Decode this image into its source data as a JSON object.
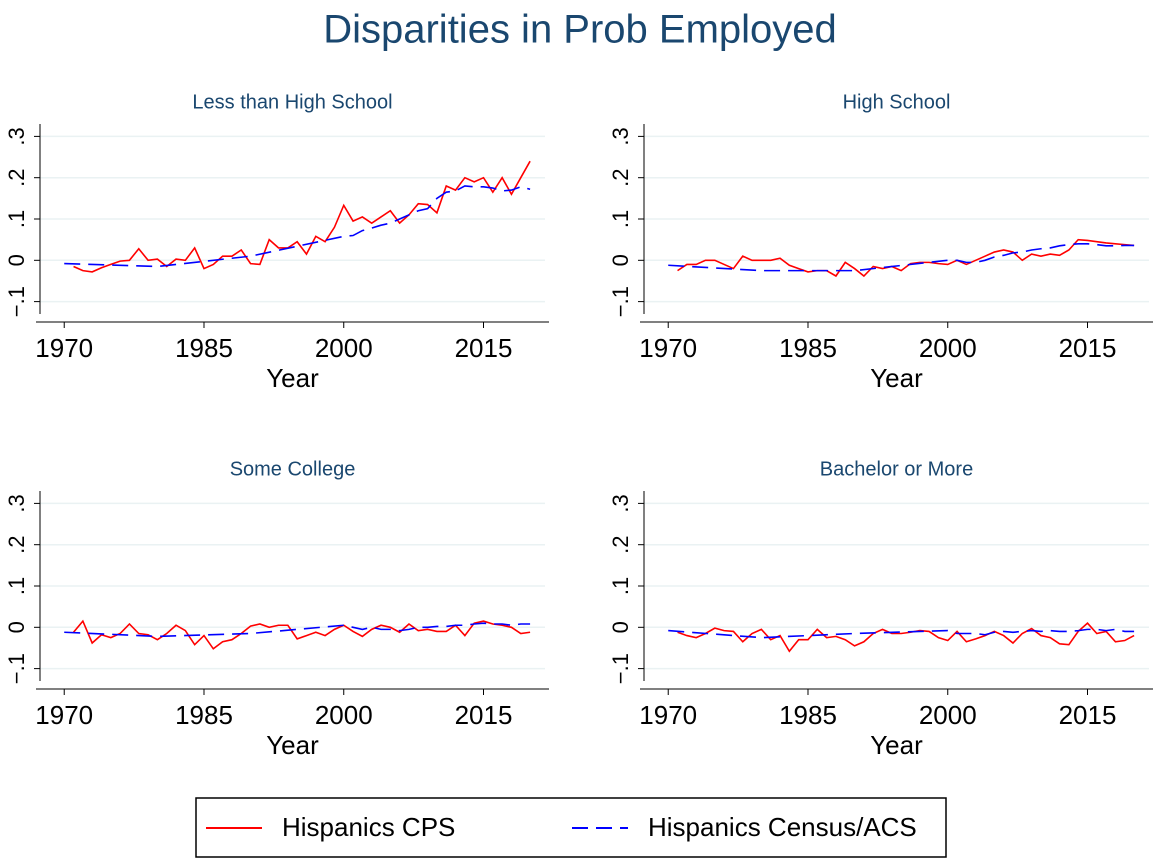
{
  "title": "Disparities in Prob Employed",
  "chart_data": [
    {
      "type": "line",
      "title": "Less than High School",
      "xlabel": "Year",
      "xlim": [
        1967.4,
        2021.6
      ],
      "ylim": [
        -0.13,
        0.33
      ],
      "xticks": [
        1970,
        1985,
        2000,
        2015
      ],
      "yticks": [
        {
          "value": -0.1,
          "label": "−.1"
        },
        0,
        {
          "value": 0.1,
          "label": ".1"
        },
        {
          "value": 0.2,
          "label": ".2"
        },
        {
          "value": 0.3,
          "label": ".3"
        }
      ],
      "grid": true,
      "series": [
        {
          "name": "Hispanics CPS",
          "color": "#ff0000",
          "dash": "solid",
          "x": [
            1971,
            1972,
            1973,
            1974,
            1975,
            1976,
            1977,
            1978,
            1979,
            1980,
            1981,
            1982,
            1983,
            1984,
            1985,
            1986,
            1987,
            1988,
            1989,
            1990,
            1991,
            1992,
            1993,
            1994,
            1995,
            1996,
            1997,
            1998,
            1999,
            2000,
            2001,
            2002,
            2003,
            2004,
            2005,
            2006,
            2007,
            2008,
            2009,
            2010,
            2011,
            2012,
            2013,
            2014,
            2015,
            2016,
            2017,
            2018,
            2019,
            2020
          ],
          "values": [
            -0.015,
            -0.025,
            -0.028,
            -0.018,
            -0.01,
            -0.002,
            0.0,
            0.028,
            0.0,
            0.003,
            -0.015,
            0.003,
            0.0,
            0.03,
            -0.02,
            -0.01,
            0.01,
            0.01,
            0.025,
            -0.008,
            -0.01,
            0.05,
            0.03,
            0.03,
            0.045,
            0.015,
            0.058,
            0.045,
            0.08,
            0.133,
            0.095,
            0.105,
            0.09,
            0.105,
            0.12,
            0.09,
            0.11,
            0.137,
            0.135,
            0.115,
            0.18,
            0.17,
            0.2,
            0.19,
            0.2,
            0.165,
            0.2,
            0.16,
            0.2,
            0.24
          ]
        },
        {
          "name": "Hispanics Census/ACS",
          "color": "#0000ff",
          "dash": "dashed",
          "x": [
            1970,
            1980,
            1990,
            2000,
            2001,
            2002,
            2003,
            2004,
            2005,
            2006,
            2007,
            2008,
            2009,
            2010,
            2011,
            2012,
            2013,
            2014,
            2015,
            2016,
            2017,
            2018,
            2019,
            2020
          ],
          "values": [
            -0.008,
            -0.015,
            0.01,
            0.058,
            0.06,
            0.072,
            0.078,
            0.085,
            0.09,
            0.1,
            0.11,
            0.12,
            0.125,
            0.15,
            0.165,
            0.168,
            0.18,
            0.178,
            0.178,
            0.175,
            0.168,
            0.17,
            0.178,
            0.172
          ]
        }
      ]
    },
    {
      "type": "line",
      "title": "High School",
      "xlabel": "Year",
      "xlim": [
        1967.4,
        2021.6
      ],
      "ylim": [
        -0.13,
        0.33
      ],
      "xticks": [
        1970,
        1985,
        2000,
        2015
      ],
      "yticks": [
        {
          "value": -0.1,
          "label": "−.1"
        },
        0,
        {
          "value": 0.1,
          "label": ".1"
        },
        {
          "value": 0.2,
          "label": ".2"
        },
        {
          "value": 0.3,
          "label": ".3"
        }
      ],
      "grid": true,
      "series": [
        {
          "name": "Hispanics CPS",
          "color": "#ff0000",
          "dash": "solid",
          "x": [
            1971,
            1972,
            1973,
            1974,
            1975,
            1976,
            1977,
            1978,
            1979,
            1980,
            1981,
            1982,
            1983,
            1984,
            1985,
            1986,
            1987,
            1988,
            1989,
            1990,
            1991,
            1992,
            1993,
            1994,
            1995,
            1996,
            1997,
            1998,
            1999,
            2000,
            2001,
            2002,
            2003,
            2004,
            2005,
            2006,
            2007,
            2008,
            2009,
            2010,
            2011,
            2012,
            2013,
            2014,
            2015,
            2016,
            2017,
            2018,
            2019,
            2020
          ],
          "values": [
            -0.025,
            -0.01,
            -0.01,
            0.0,
            0.0,
            -0.01,
            -0.02,
            0.01,
            0.0,
            0.0,
            0.0,
            0.005,
            -0.012,
            -0.02,
            -0.028,
            -0.025,
            -0.025,
            -0.038,
            -0.005,
            -0.02,
            -0.038,
            -0.015,
            -0.02,
            -0.015,
            -0.025,
            -0.008,
            -0.005,
            -0.005,
            -0.008,
            -0.01,
            0.0,
            -0.01,
            0.0,
            0.01,
            0.02,
            0.025,
            0.02,
            0.0,
            0.015,
            0.01,
            0.015,
            0.012,
            0.025,
            0.05,
            0.048,
            0.045,
            0.042,
            0.04,
            0.038,
            0.036
          ]
        },
        {
          "name": "Hispanics Census/ACS",
          "color": "#0000ff",
          "dash": "dashed",
          "x": [
            1970,
            1980,
            1990,
            2000,
            2001,
            2002,
            2003,
            2004,
            2005,
            2006,
            2007,
            2008,
            2009,
            2010,
            2011,
            2012,
            2013,
            2014,
            2015,
            2016,
            2017,
            2018,
            2019,
            2020
          ],
          "values": [
            -0.012,
            -0.025,
            -0.025,
            0.0,
            0.0,
            -0.005,
            -0.005,
            0.0,
            0.008,
            0.012,
            0.018,
            0.02,
            0.025,
            0.028,
            0.03,
            0.035,
            0.038,
            0.04,
            0.04,
            0.038,
            0.035,
            0.035,
            0.036,
            0.036
          ]
        }
      ]
    },
    {
      "type": "line",
      "title": "Some College",
      "xlabel": "Year",
      "xlim": [
        1967.4,
        2021.6
      ],
      "ylim": [
        -0.13,
        0.33
      ],
      "xticks": [
        1970,
        1985,
        2000,
        2015
      ],
      "yticks": [
        {
          "value": -0.1,
          "label": "−.1"
        },
        0,
        {
          "value": 0.1,
          "label": ".1"
        },
        {
          "value": 0.2,
          "label": ".2"
        },
        {
          "value": 0.3,
          "label": ".3"
        }
      ],
      "grid": true,
      "series": [
        {
          "name": "Hispanics CPS",
          "color": "#ff0000",
          "dash": "solid",
          "x": [
            1971,
            1972,
            1973,
            1974,
            1975,
            1976,
            1977,
            1978,
            1979,
            1980,
            1981,
            1982,
            1983,
            1984,
            1985,
            1986,
            1987,
            1988,
            1989,
            1990,
            1991,
            1992,
            1993,
            1994,
            1995,
            1996,
            1997,
            1998,
            1999,
            2000,
            2001,
            2002,
            2003,
            2004,
            2005,
            2006,
            2007,
            2008,
            2009,
            2010,
            2011,
            2012,
            2013,
            2014,
            2015,
            2016,
            2017,
            2018,
            2019,
            2020
          ],
          "values": [
            -0.012,
            0.015,
            -0.038,
            -0.018,
            -0.025,
            -0.015,
            0.008,
            -0.015,
            -0.018,
            -0.03,
            -0.015,
            0.005,
            -0.008,
            -0.042,
            -0.02,
            -0.052,
            -0.035,
            -0.03,
            -0.015,
            0.003,
            0.008,
            0.0,
            0.005,
            0.005,
            -0.028,
            -0.02,
            -0.012,
            -0.02,
            -0.005,
            0.005,
            -0.01,
            -0.022,
            -0.005,
            0.005,
            0.0,
            -0.012,
            0.008,
            -0.008,
            -0.005,
            -0.01,
            -0.01,
            0.005,
            -0.02,
            0.01,
            0.015,
            0.008,
            0.005,
            0.0,
            -0.015,
            -0.012
          ]
        },
        {
          "name": "Hispanics Census/ACS",
          "color": "#0000ff",
          "dash": "dashed",
          "x": [
            1970,
            1980,
            1990,
            2000,
            2001,
            2002,
            2003,
            2004,
            2005,
            2006,
            2007,
            2008,
            2009,
            2010,
            2011,
            2012,
            2013,
            2014,
            2015,
            2016,
            2017,
            2018,
            2019,
            2020
          ],
          "values": [
            -0.012,
            -0.022,
            -0.015,
            0.005,
            0.0,
            -0.005,
            0.0,
            -0.005,
            -0.005,
            -0.008,
            -0.005,
            0.0,
            0.0,
            0.002,
            0.002,
            0.005,
            0.005,
            0.008,
            0.01,
            0.008,
            0.008,
            0.005,
            0.008,
            0.008
          ]
        }
      ]
    },
    {
      "type": "line",
      "title": "Bachelor or More",
      "xlabel": "Year",
      "xlim": [
        1967.4,
        2021.6
      ],
      "ylim": [
        -0.13,
        0.33
      ],
      "xticks": [
        1970,
        1985,
        2000,
        2015
      ],
      "yticks": [
        {
          "value": -0.1,
          "label": "−.1"
        },
        0,
        {
          "value": 0.1,
          "label": ".1"
        },
        {
          "value": 0.2,
          "label": ".2"
        },
        {
          "value": 0.3,
          "label": ".3"
        }
      ],
      "grid": true,
      "series": [
        {
          "name": "Hispanics CPS",
          "color": "#ff0000",
          "dash": "solid",
          "x": [
            1971,
            1972,
            1973,
            1974,
            1975,
            1976,
            1977,
            1978,
            1979,
            1980,
            1981,
            1982,
            1983,
            1984,
            1985,
            1986,
            1987,
            1988,
            1989,
            1990,
            1991,
            1992,
            1993,
            1994,
            1995,
            1996,
            1997,
            1998,
            1999,
            2000,
            2001,
            2002,
            2003,
            2004,
            2005,
            2006,
            2007,
            2008,
            2009,
            2010,
            2011,
            2012,
            2013,
            2014,
            2015,
            2016,
            2017,
            2018,
            2019,
            2020
          ],
          "values": [
            -0.012,
            -0.02,
            -0.025,
            -0.015,
            -0.002,
            -0.008,
            -0.01,
            -0.035,
            -0.015,
            -0.005,
            -0.03,
            -0.02,
            -0.058,
            -0.03,
            -0.03,
            -0.005,
            -0.025,
            -0.022,
            -0.03,
            -0.045,
            -0.035,
            -0.015,
            -0.005,
            -0.015,
            -0.015,
            -0.012,
            -0.008,
            -0.01,
            -0.025,
            -0.032,
            -0.01,
            -0.035,
            -0.028,
            -0.02,
            -0.01,
            -0.02,
            -0.038,
            -0.015,
            -0.003,
            -0.02,
            -0.025,
            -0.04,
            -0.042,
            -0.01,
            0.01,
            -0.015,
            -0.01,
            -0.035,
            -0.032,
            -0.02
          ]
        },
        {
          "name": "Hispanics Census/ACS",
          "color": "#0000ff",
          "dash": "dashed",
          "x": [
            1970,
            1980,
            1990,
            2000,
            2001,
            2002,
            2003,
            2004,
            2005,
            2006,
            2007,
            2008,
            2009,
            2010,
            2011,
            2012,
            2013,
            2014,
            2015,
            2016,
            2017,
            2018,
            2019,
            2020
          ],
          "values": [
            -0.008,
            -0.025,
            -0.015,
            -0.008,
            -0.015,
            -0.015,
            -0.015,
            -0.018,
            -0.012,
            -0.01,
            -0.012,
            -0.01,
            -0.008,
            -0.01,
            -0.008,
            -0.01,
            -0.01,
            -0.008,
            -0.005,
            -0.005,
            -0.008,
            -0.005,
            -0.01,
            -0.01
          ]
        }
      ]
    }
  ]
}
